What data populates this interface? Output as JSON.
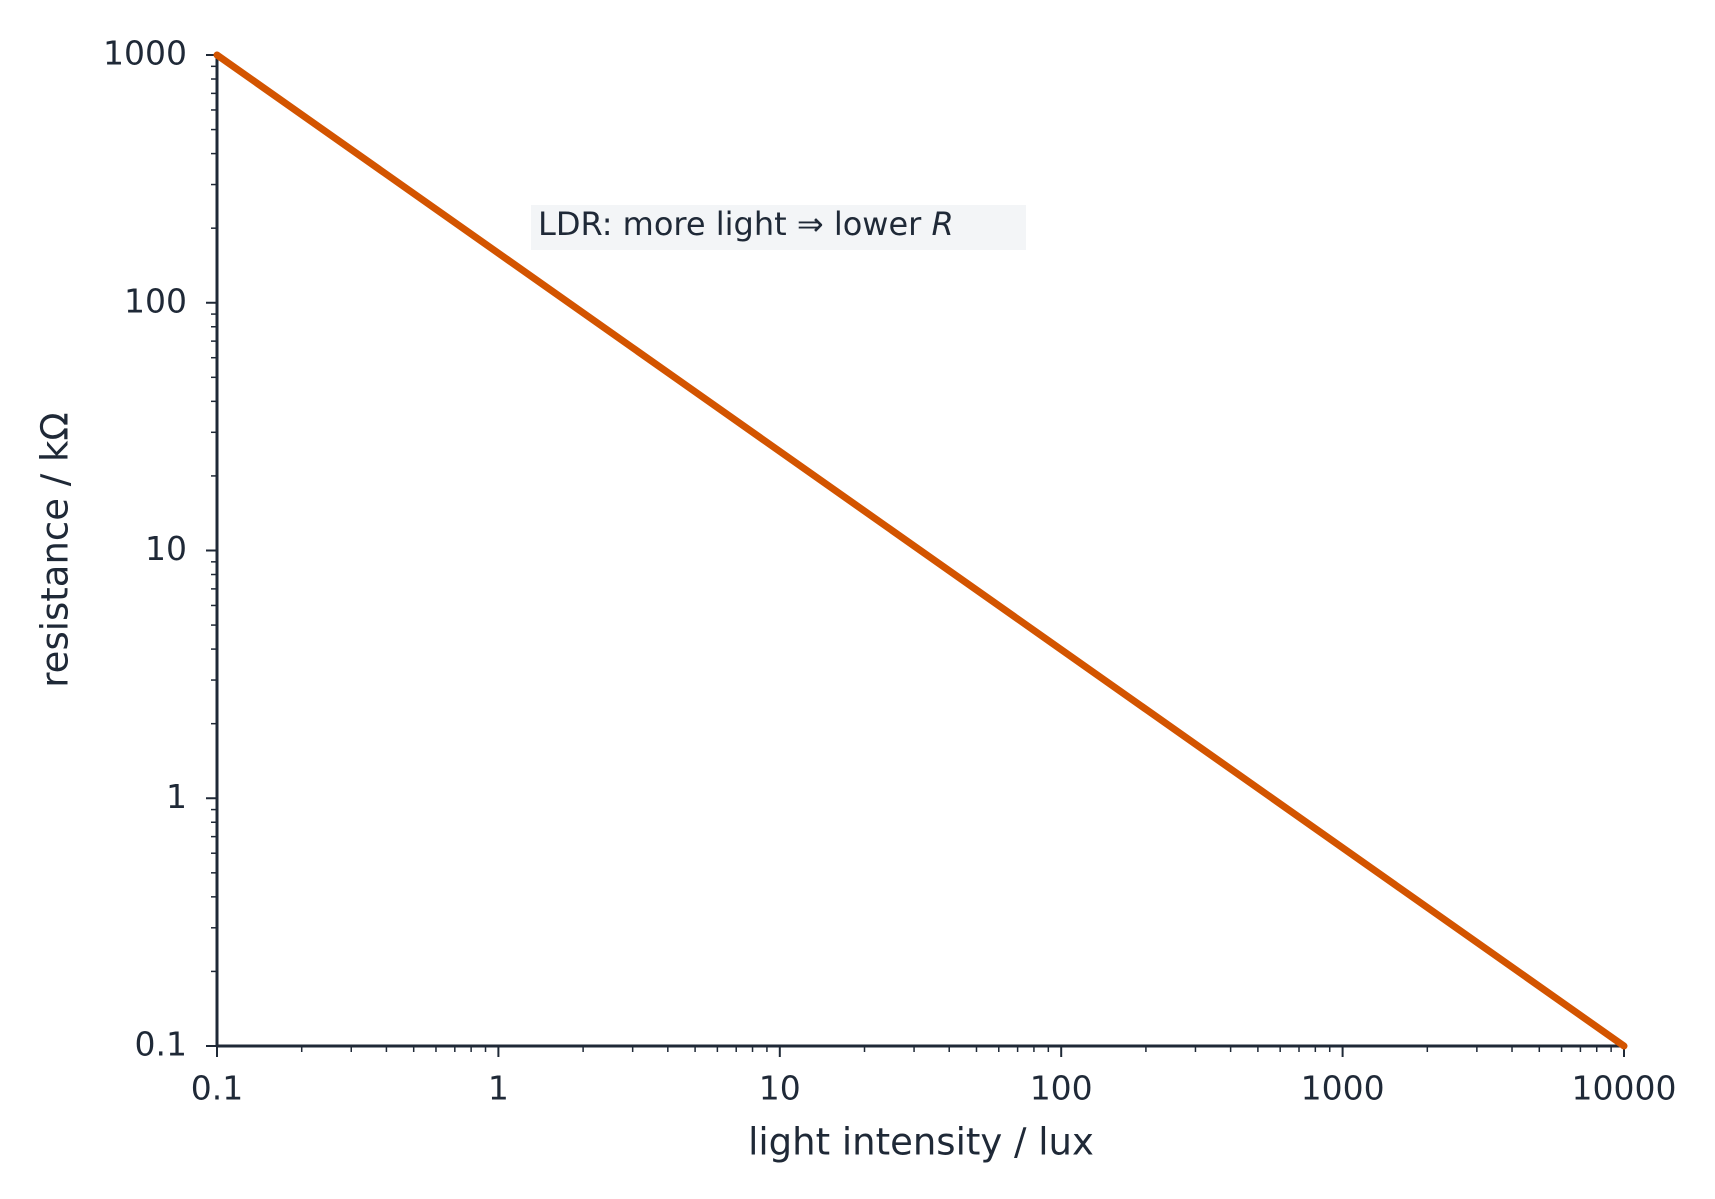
{
  "chart_data": {
    "type": "line",
    "x_label": "light intensity / lux",
    "y_label": "resistance / kΩ",
    "x": [
      0.1,
      10000
    ],
    "series": [
      {
        "color": "#d35400",
        "values": [
          1000,
          0.1
        ]
      }
    ],
    "xscale": "log",
    "yscale": "log",
    "xlim": [
      0.1,
      10000
    ],
    "ylim": [
      0.1,
      1000
    ],
    "xticks": [
      0.1,
      1,
      10,
      100,
      1000,
      10000
    ],
    "yticks": [
      0.1,
      1,
      10,
      100,
      1000
    ],
    "annotation": {
      "text": "LDR: more light ⇒ lower ",
      "emphasis": "R"
    },
    "grid": false
  }
}
